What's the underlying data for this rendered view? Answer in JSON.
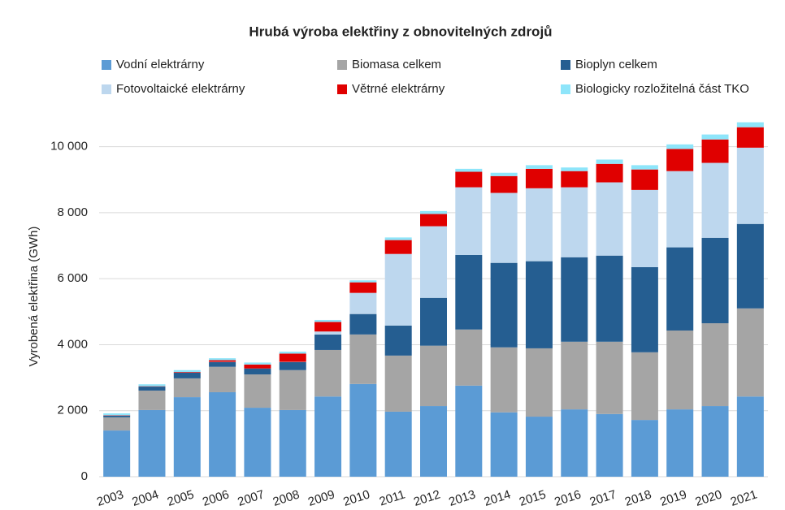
{
  "chart_data": {
    "type": "stacked_bar",
    "title": "Hrubá výroba elektřiny z obnovitelných zdrojů",
    "y_label": "Vyrobená elektřina (GWh)",
    "categories": [
      "2003",
      "2004",
      "2005",
      "2006",
      "2007",
      "2008",
      "2009",
      "2010",
      "2011",
      "2012",
      "2013",
      "2014",
      "2015",
      "2016",
      "2017",
      "2018",
      "2019",
      "2020",
      "2021"
    ],
    "series": [
      {
        "name": "Vodní elektrárny",
        "color": "#5b9bd5",
        "values": [
          1400,
          2020,
          2410,
          2560,
          2090,
          2020,
          2430,
          2810,
          1970,
          2140,
          2760,
          1950,
          1820,
          2040,
          1900,
          1720,
          2040,
          2140,
          2430
        ]
      },
      {
        "name": "Biomasa celkem",
        "color": "#a5a5a5",
        "values": [
          400,
          590,
          570,
          770,
          1010,
          1210,
          1410,
          1500,
          1700,
          1830,
          1700,
          1970,
          2070,
          2050,
          2190,
          2050,
          2390,
          2510,
          2670
        ]
      },
      {
        "name": "Bioplyn celkem",
        "color": "#255e91",
        "values": [
          50,
          120,
          170,
          140,
          180,
          240,
          470,
          620,
          910,
          1450,
          2260,
          2560,
          2640,
          2560,
          2610,
          2580,
          2520,
          2590,
          2560
        ]
      },
      {
        "name": "Fotovoltaické elektrárny",
        "color": "#bdd7ee",
        "values": [
          0,
          0,
          0,
          10,
          0,
          10,
          90,
          640,
          2170,
          2170,
          2050,
          2120,
          2210,
          2120,
          2220,
          2340,
          2310,
          2270,
          2310
        ]
      },
      {
        "name": "Větrné elektrárny",
        "color": "#e00000",
        "values": [
          10,
          10,
          20,
          50,
          120,
          250,
          290,
          320,
          420,
          370,
          470,
          510,
          590,
          490,
          560,
          620,
          670,
          710,
          620
        ]
      },
      {
        "name": "Biologicky rozložitelná část TKO",
        "color": "#8ee5fa",
        "values": [
          60,
          60,
          60,
          60,
          60,
          60,
          60,
          60,
          80,
          90,
          90,
          100,
          110,
          110,
          130,
          130,
          140,
          150,
          150
        ]
      }
    ],
    "ylim": [
      0,
      11000
    ],
    "yticks": [
      0,
      {
        "value": 2000,
        "label": "2 000"
      },
      {
        "value": 4000,
        "label": "4 000"
      },
      {
        "value": 6000,
        "label": "6 000"
      },
      {
        "value": 8000,
        "label": "8 000"
      },
      {
        "value": 10000,
        "label": "10 000"
      }
    ],
    "grid": true
  }
}
